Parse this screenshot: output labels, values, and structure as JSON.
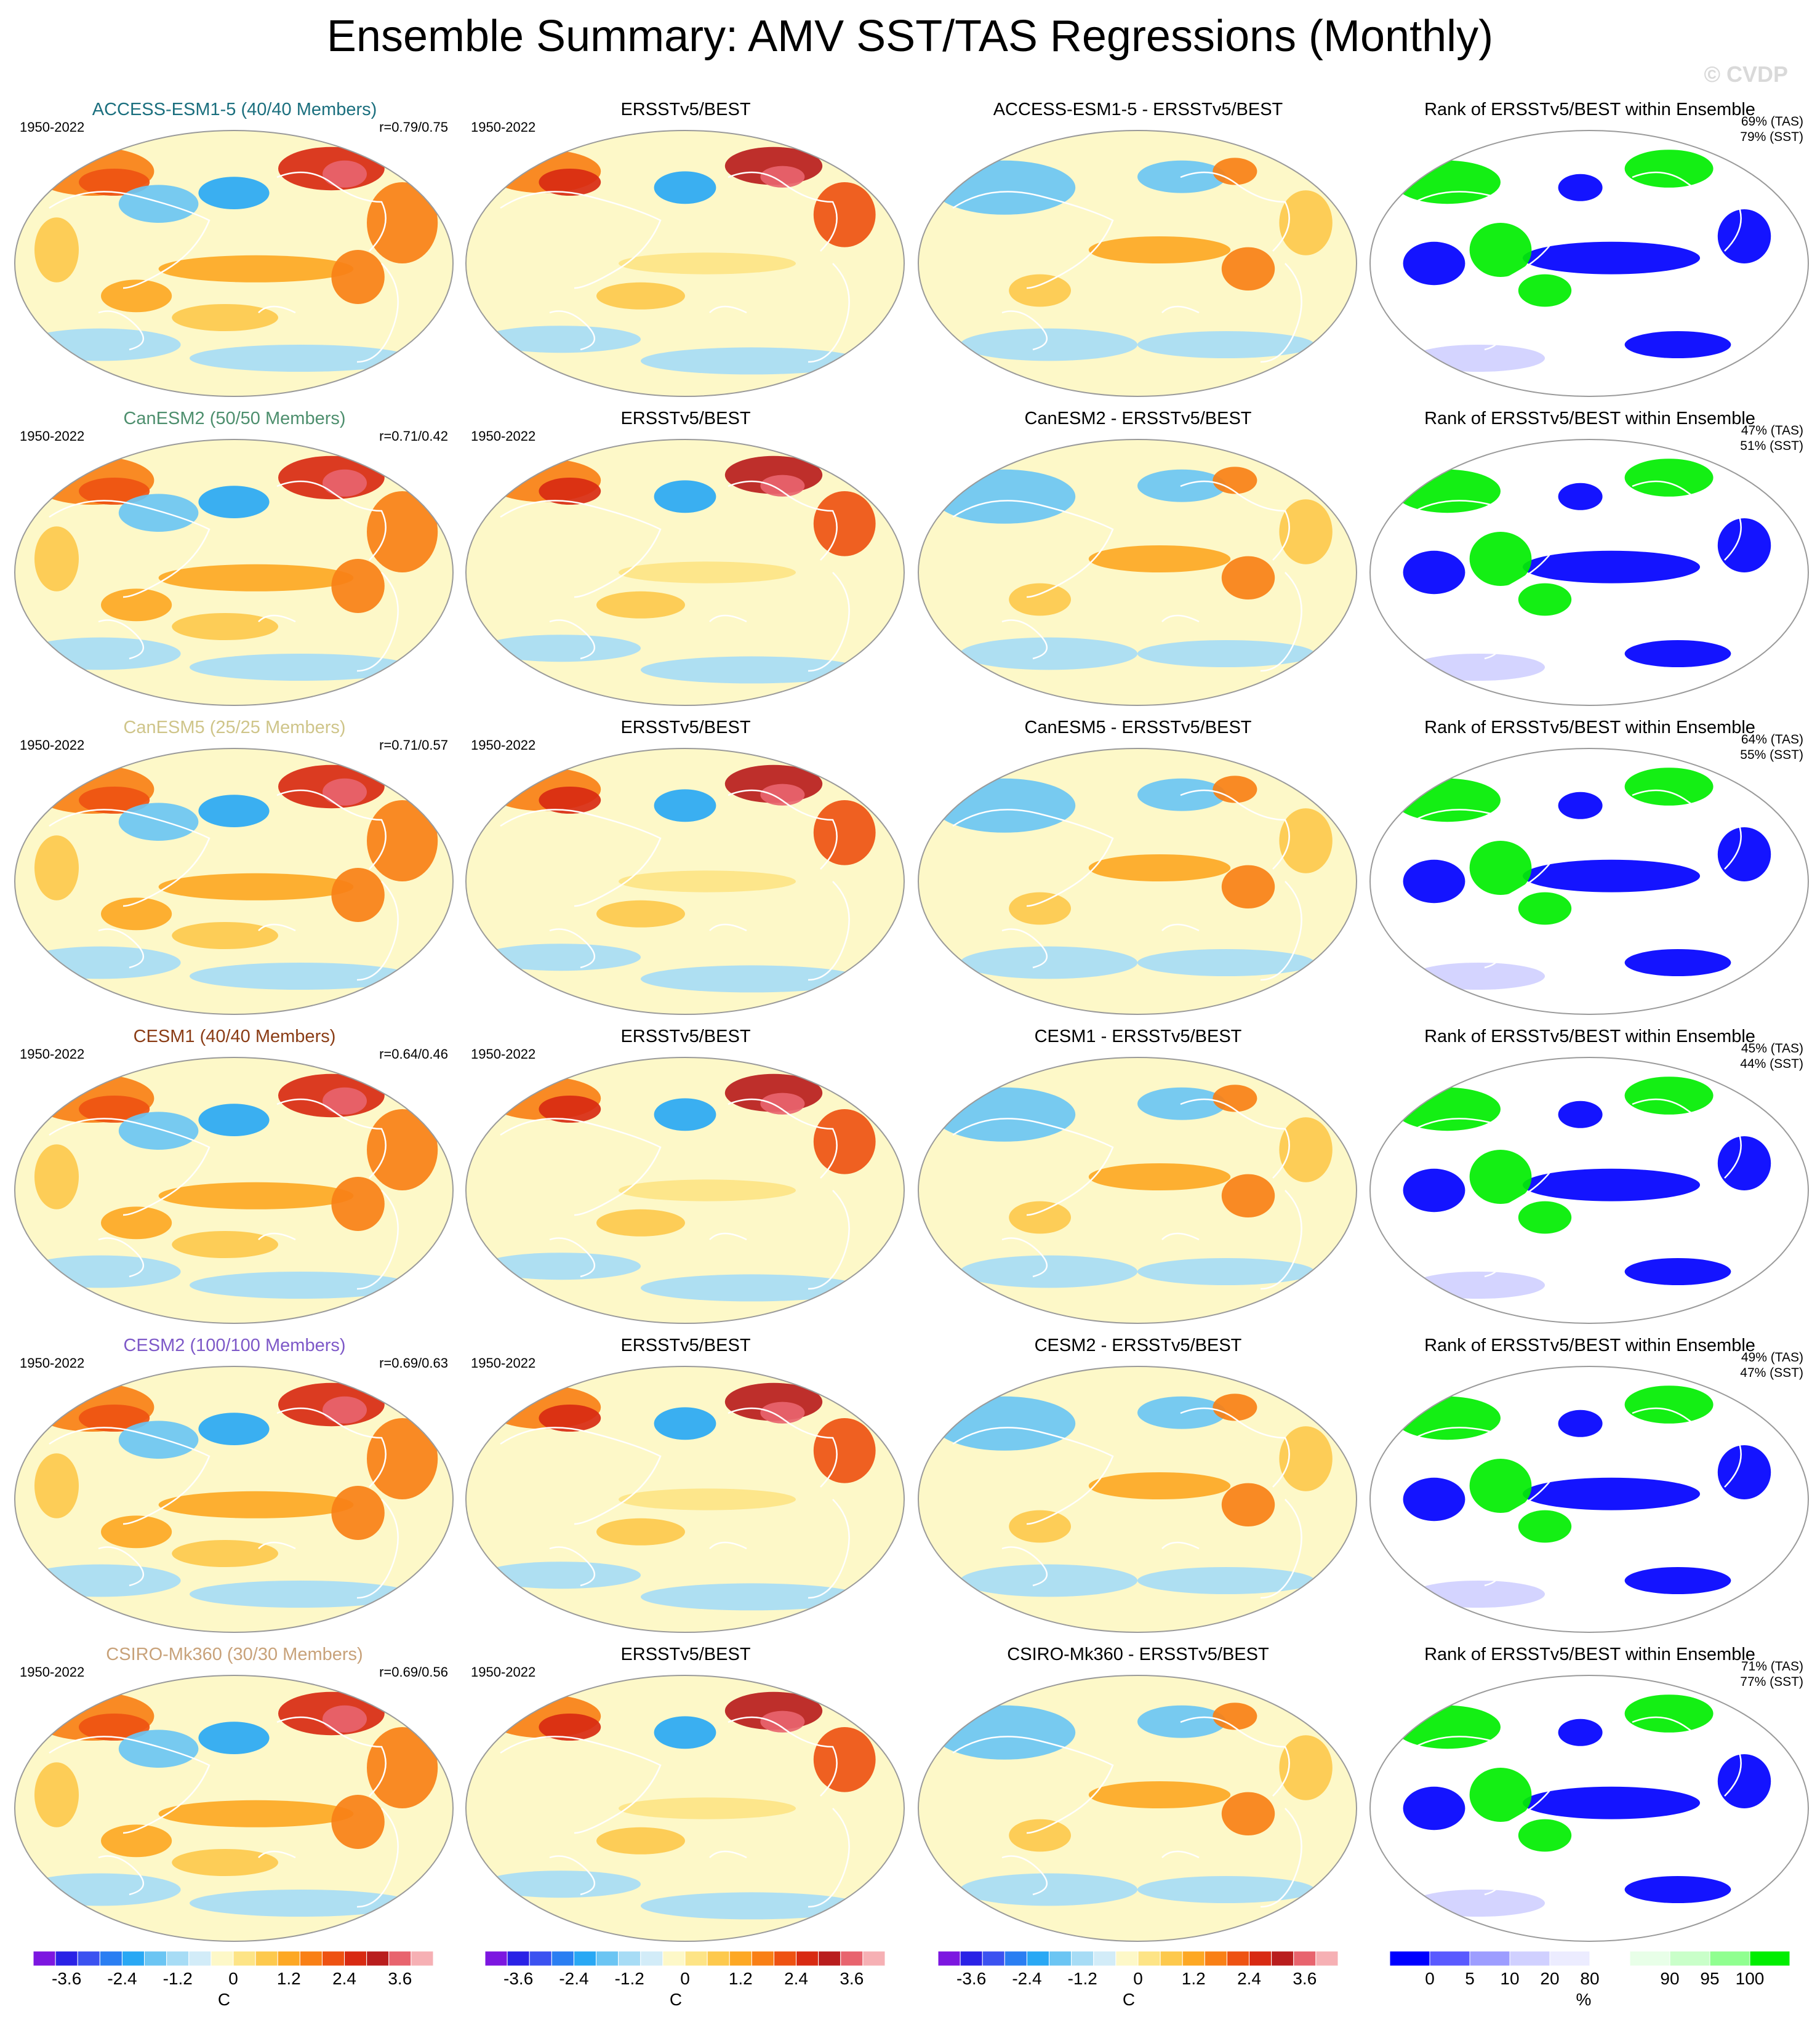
{
  "title": "Ensemble Summary: AMV SST/TAS Regressions (Monthly)",
  "watermark": "© CVDP",
  "period": "1950-2022",
  "colors": {
    "diverging": [
      "#7c17e0",
      "#2a22e6",
      "#3b52f0",
      "#2a7ef2",
      "#29a8f4",
      "#6bc5f3",
      "#a7dcf5",
      "#d2ecf8",
      "#fdf8c8",
      "#fde486",
      "#fdc94d",
      "#fda824",
      "#f98016",
      "#ee5212",
      "#d82a12",
      "#b91d1d",
      "#e8646e",
      "#f6b0b4"
    ],
    "rank": [
      "#0000ff",
      "#5a5aff",
      "#9d9dff",
      "#d0d0ff",
      "#ececff",
      "#ffffff",
      "#e8ffe8",
      "#c9ffc9",
      "#90ff90",
      "#00ee00"
    ],
    "coast": "#ffffff"
  },
  "panel_titles": {
    "obs": "ERSSTv5/BEST",
    "rank": "Rank of ERSSTv5/BEST within Ensemble"
  },
  "rows": [
    {
      "model": "ACCESS-ESM1-5 (40/40 Members)",
      "model_color": "#1b6f7e",
      "r": "r=0.79/0.75",
      "diff_title": "ACCESS-ESM1-5 - ERSSTv5/BEST",
      "rank_tas": "69% (TAS)",
      "rank_sst": "79% (SST)"
    },
    {
      "model": "CanESM2 (50/50 Members)",
      "model_color": "#4e8f6e",
      "r": "r=0.71/0.42",
      "diff_title": "CanESM2 - ERSSTv5/BEST",
      "rank_tas": "47% (TAS)",
      "rank_sst": "51% (SST)"
    },
    {
      "model": "CanESM5 (25/25 Members)",
      "model_color": "#cfc58a",
      "r": "r=0.71/0.57",
      "diff_title": "CanESM5 - ERSSTv5/BEST",
      "rank_tas": "64% (TAS)",
      "rank_sst": "55% (SST)"
    },
    {
      "model": "CESM1 (40/40 Members)",
      "model_color": "#8b3d16",
      "r": "r=0.64/0.46",
      "diff_title": "CESM1 - ERSSTv5/BEST",
      "rank_tas": "45% (TAS)",
      "rank_sst": "44% (SST)"
    },
    {
      "model": "CESM2 (100/100 Members)",
      "model_color": "#7e59c8",
      "r": "r=0.69/0.63",
      "diff_title": "CESM2 - ERSSTv5/BEST",
      "rank_tas": "49% (TAS)",
      "rank_sst": "47% (SST)"
    },
    {
      "model": "CSIRO-Mk360 (30/30 Members)",
      "model_color": "#c8a27a",
      "r": "r=0.69/0.56",
      "diff_title": "CSIRO-Mk360 - ERSSTv5/BEST",
      "rank_tas": "71% (TAS)",
      "rank_sst": "77% (SST)"
    }
  ],
  "colorbars": {
    "main": {
      "ticks": [
        "-3.6",
        "-2.4",
        "-1.2",
        "0",
        "1.2",
        "2.4",
        "3.6"
      ],
      "unit": "C"
    },
    "rank": {
      "ticks": [
        "0",
        "5",
        "10",
        "20",
        "80",
        "90",
        "95",
        "100"
      ],
      "unit": "%"
    }
  },
  "chart_data": [
    {
      "type": "heatmap",
      "title": "Ensemble Summary: AMV SST/TAS Regressions (Monthly)",
      "description_levels": "contour fill from -3.6 to 3.6 C in steps of 0.4 (model, observation and difference maps)"
    },
    {
      "type": "heatmap",
      "legend_unit": "C",
      "levels": [
        "-3.6",
        "-2.4",
        "-1.2",
        "0",
        "1.2",
        "2.4",
        "3.6"
      ]
    },
    {
      "type": "heatmap",
      "legend_unit": "%",
      "levels": [
        "0",
        "5",
        "10",
        "20",
        "80",
        "90",
        "95",
        "100"
      ]
    }
  ]
}
